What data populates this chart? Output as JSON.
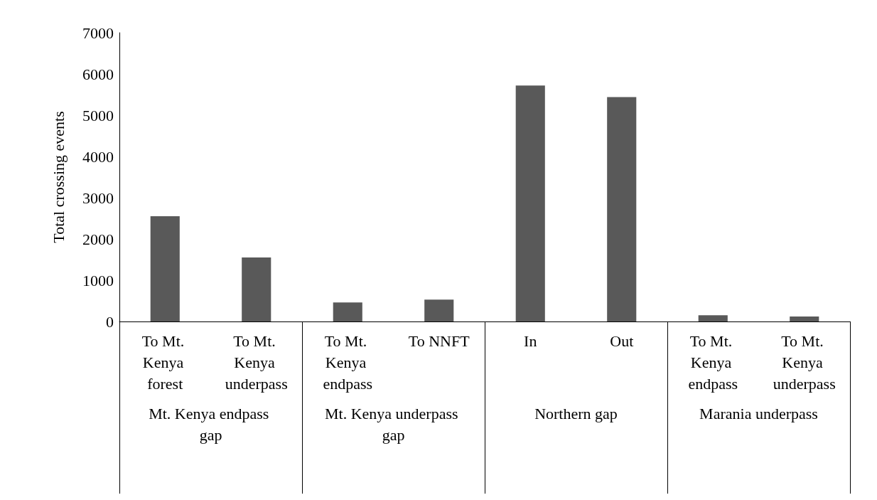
{
  "chart_data": {
    "type": "bar",
    "ylabel": "Total crossing events",
    "categories": [
      "To Mt. Kenya forest",
      "To Mt. Kenya underpass",
      "To Mt. Kenya endpass",
      "To NNFT",
      "In",
      "Out",
      "To Mt. Kenya endpass",
      "To Mt. Kenya underpass"
    ],
    "values": [
      2550,
      1550,
      460,
      530,
      5720,
      5440,
      150,
      120
    ],
    "color": "#595959",
    "annotations": [
      "Mt. Kenya endpass gap",
      "Mt. Kenya underpass gap",
      "Northern gap",
      "Marania underpass"
    ],
    "ylim": [
      0,
      7000
    ],
    "yticks": [
      0,
      1000,
      2000,
      3000,
      4000,
      5000,
      6000,
      7000
    ],
    "grid": false
  }
}
